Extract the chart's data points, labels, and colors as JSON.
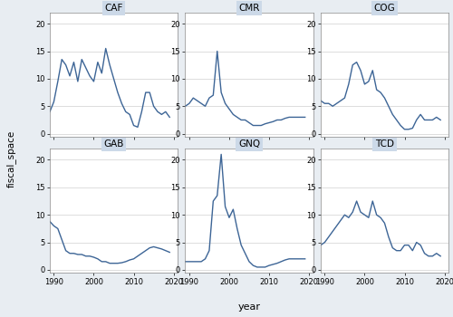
{
  "title": "",
  "ylabel": "fiscal_space",
  "xlabel": "year",
  "figure_facecolor": "#e8edf2",
  "plot_background": "#ffffff",
  "line_color": "#3d6596",
  "line_width": 1.0,
  "countries": [
    "CAF",
    "CMR",
    "COG",
    "GAB",
    "GNQ",
    "TCD"
  ],
  "ylim": [
    -0.5,
    22
  ],
  "yticks": [
    0,
    5,
    10,
    15,
    20
  ],
  "xlim": [
    1989,
    2021
  ],
  "xticks": [
    1990,
    2000,
    2010,
    2020
  ],
  "title_bg": "#ccd9e8",
  "data": {
    "CAF": {
      "years": [
        1989,
        1990,
        1991,
        1992,
        1993,
        1994,
        1995,
        1996,
        1997,
        1998,
        1999,
        2000,
        2001,
        2002,
        2003,
        2004,
        2005,
        2006,
        2007,
        2008,
        2009,
        2010,
        2011,
        2012,
        2013,
        2014,
        2015,
        2016,
        2017,
        2018,
        2019
      ],
      "values": [
        4.0,
        5.8,
        9.5,
        13.5,
        12.5,
        10.5,
        13.0,
        9.5,
        13.5,
        12.0,
        10.5,
        9.5,
        13.0,
        11.0,
        15.5,
        12.5,
        10.0,
        7.5,
        5.5,
        4.0,
        3.5,
        1.5,
        1.2,
        4.0,
        7.5,
        7.5,
        5.0,
        4.0,
        3.5,
        4.0,
        3.0
      ]
    },
    "CMR": {
      "years": [
        1989,
        1990,
        1991,
        1992,
        1993,
        1994,
        1995,
        1996,
        1997,
        1998,
        1999,
        2000,
        2001,
        2002,
        2003,
        2004,
        2005,
        2006,
        2007,
        2008,
        2009,
        2010,
        2011,
        2012,
        2013,
        2014,
        2015,
        2016,
        2017,
        2018,
        2019
      ],
      "values": [
        5.0,
        5.5,
        6.5,
        6.0,
        5.5,
        5.0,
        6.5,
        7.0,
        15.0,
        7.5,
        5.5,
        4.5,
        3.5,
        3.0,
        2.5,
        2.5,
        2.0,
        1.5,
        1.5,
        1.5,
        1.8,
        2.0,
        2.2,
        2.5,
        2.5,
        2.8,
        3.0,
        3.0,
        3.0,
        3.0,
        3.0
      ]
    },
    "COG": {
      "years": [
        1989,
        1990,
        1991,
        1992,
        1993,
        1994,
        1995,
        1996,
        1997,
        1998,
        1999,
        2000,
        2001,
        2002,
        2003,
        2004,
        2005,
        2006,
        2007,
        2008,
        2009,
        2010,
        2011,
        2012,
        2013,
        2014,
        2015,
        2016,
        2017,
        2018,
        2019
      ],
      "values": [
        6.0,
        5.5,
        5.5,
        5.0,
        5.5,
        6.0,
        6.5,
        9.0,
        12.5,
        13.0,
        11.5,
        9.0,
        9.5,
        11.5,
        8.0,
        7.5,
        6.5,
        5.0,
        3.5,
        2.5,
        1.5,
        0.8,
        0.8,
        1.0,
        2.5,
        3.5,
        2.5,
        2.5,
        2.5,
        3.0,
        2.5
      ]
    },
    "GAB": {
      "years": [
        1989,
        1990,
        1991,
        1992,
        1993,
        1994,
        1995,
        1996,
        1997,
        1998,
        1999,
        2000,
        2001,
        2002,
        2003,
        2004,
        2005,
        2006,
        2007,
        2008,
        2009,
        2010,
        2011,
        2012,
        2013,
        2014,
        2015,
        2016,
        2017,
        2018,
        2019
      ],
      "values": [
        8.8,
        8.0,
        7.5,
        5.5,
        3.5,
        3.0,
        3.0,
        2.8,
        2.8,
        2.5,
        2.5,
        2.3,
        2.0,
        1.5,
        1.5,
        1.2,
        1.2,
        1.2,
        1.3,
        1.5,
        1.8,
        2.0,
        2.5,
        3.0,
        3.5,
        4.0,
        4.2,
        4.0,
        3.8,
        3.5,
        3.2
      ]
    },
    "GNQ": {
      "years": [
        1989,
        1990,
        1991,
        1992,
        1993,
        1994,
        1995,
        1996,
        1997,
        1998,
        1999,
        2000,
        2001,
        2002,
        2003,
        2004,
        2005,
        2006,
        2007,
        2008,
        2009,
        2010,
        2011,
        2012,
        2013,
        2014,
        2015,
        2016,
        2017,
        2018,
        2019
      ],
      "values": [
        1.5,
        1.5,
        1.5,
        1.5,
        1.5,
        2.0,
        3.5,
        12.5,
        13.5,
        21.0,
        11.5,
        9.5,
        11.0,
        7.5,
        4.5,
        3.0,
        1.5,
        0.8,
        0.5,
        0.5,
        0.5,
        0.8,
        1.0,
        1.2,
        1.5,
        1.8,
        2.0,
        2.0,
        2.0,
        2.0,
        2.0
      ]
    },
    "TCD": {
      "years": [
        1989,
        1990,
        1991,
        1992,
        1993,
        1994,
        1995,
        1996,
        1997,
        1998,
        1999,
        2000,
        2001,
        2002,
        2003,
        2004,
        2005,
        2006,
        2007,
        2008,
        2009,
        2010,
        2011,
        2012,
        2013,
        2014,
        2015,
        2016,
        2017,
        2018,
        2019
      ],
      "values": [
        4.5,
        5.0,
        6.0,
        7.0,
        8.0,
        9.0,
        10.0,
        9.5,
        10.5,
        12.5,
        10.5,
        10.0,
        9.5,
        12.5,
        10.0,
        9.5,
        8.5,
        6.0,
        4.0,
        3.5,
        3.5,
        4.5,
        4.5,
        3.5,
        5.0,
        4.5,
        3.0,
        2.5,
        2.5,
        3.0,
        2.5
      ]
    }
  }
}
